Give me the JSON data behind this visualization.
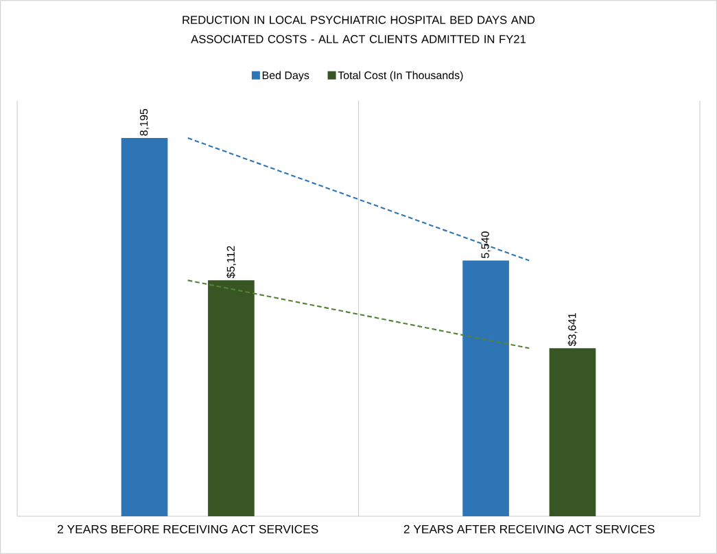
{
  "chart_data": {
    "type": "bar",
    "title": "REDUCTION IN LOCAL PSYCHIATRIC HOSPITAL BED DAYS AND ASSOCIATED COSTS - ALL ACT CLIENTS ADMITTED IN FY21",
    "categories": [
      "2 YEARS BEFORE RECEIVING ACT SERVICES",
      "2 YEARS AFTER RECEIVING ACT SERVICES"
    ],
    "series": [
      {
        "name": "Bed Days",
        "color": "#2e75b6",
        "values": [
          8195,
          5540
        ],
        "value_labels": [
          "8,195",
          "5,540"
        ]
      },
      {
        "name": "Total Cost (In Thousands)",
        "color": "#375623",
        "values": [
          5112,
          3641
        ],
        "value_labels": [
          "$5,112",
          "$3,641"
        ]
      },
      {
        "type": "line",
        "color": "#2e75b6",
        "line_style": "dashed",
        "values": [
          8195,
          5540
        ]
      },
      {
        "type": "line",
        "color": "#548235",
        "line_style": "dashed",
        "values": [
          5112,
          3641
        ]
      }
    ],
    "ylim": [
      0,
      9000
    ],
    "tick_labels": "x",
    "grid": "x",
    "legend": "top"
  }
}
